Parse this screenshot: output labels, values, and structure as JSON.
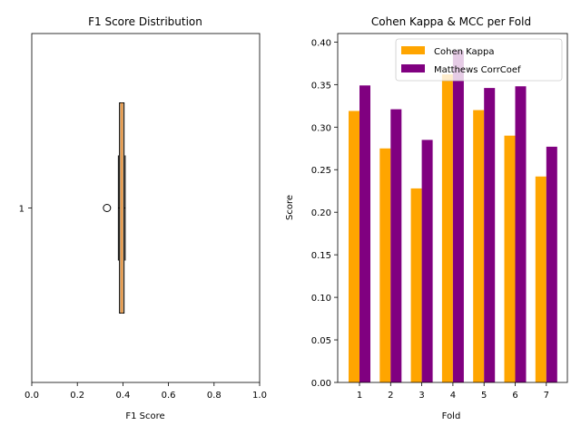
{
  "chart_data": [
    {
      "type": "box",
      "orientation": "horizontal",
      "title": "F1 Score Distribution",
      "xlabel": "F1 Score",
      "ylabel": "",
      "xlim": [
        0.0,
        1.0
      ],
      "xticks": [
        "0.0",
        "0.2",
        "0.4",
        "0.6",
        "0.8",
        "1.0"
      ],
      "yticks": [
        "1"
      ],
      "box": {
        "label": "1",
        "whisker_low": 0.38,
        "q1": 0.385,
        "median": 0.395,
        "q3": 0.405,
        "whisker_high": 0.41,
        "outliers": [
          0.33
        ]
      },
      "box_fill": "#d2b48c",
      "median_color": "#ff7f0e"
    },
    {
      "type": "bar",
      "title": "Cohen Kappa & MCC per Fold",
      "xlabel": "Fold",
      "ylabel": "Score",
      "categories": [
        "1",
        "2",
        "3",
        "4",
        "5",
        "6",
        "7"
      ],
      "ylim": [
        0.0,
        0.41
      ],
      "yticks": [
        "0.00",
        "0.05",
        "0.10",
        "0.15",
        "0.20",
        "0.25",
        "0.30",
        "0.35",
        "0.40"
      ],
      "legend_position": "top-right",
      "series": [
        {
          "name": "Cohen Kappa",
          "color": "#ffa500",
          "values": [
            0.319,
            0.275,
            0.228,
            0.362,
            0.32,
            0.29,
            0.242
          ]
        },
        {
          "name": "Matthews CorrCoef",
          "color": "#800080",
          "values": [
            0.349,
            0.321,
            0.285,
            0.39,
            0.346,
            0.348,
            0.277
          ]
        }
      ]
    }
  ]
}
